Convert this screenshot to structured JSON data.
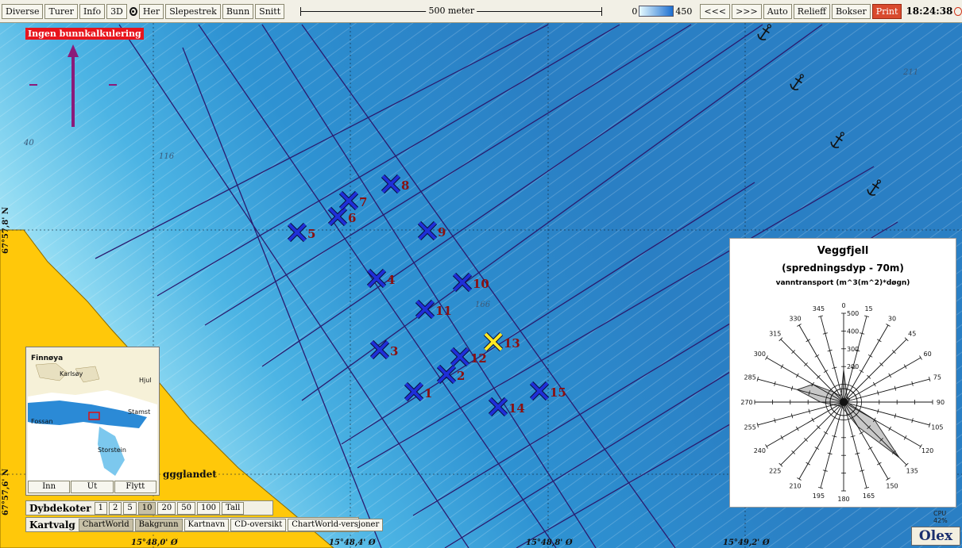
{
  "toolbar": {
    "buttons": [
      "Diverse",
      "Turer",
      "Info",
      "3D",
      "Her",
      "Slepestrek",
      "Bunn",
      "Snitt"
    ],
    "scale_label": "500 meter",
    "depth_min": "0",
    "depth_max": "450",
    "right_buttons": [
      "<<<",
      ">>>",
      "Auto",
      "Relieff",
      "Bokser"
    ],
    "print_label": "Print",
    "clock": "18:24:38"
  },
  "map": {
    "no_bottom_calc": "Ingen bunnkalkulering",
    "depth_labels": [
      "211",
      "116",
      "40",
      "166"
    ],
    "land_label": "ggglandet",
    "stations": [
      {
        "label": "1",
        "color": "blue"
      },
      {
        "label": "2",
        "color": "blue"
      },
      {
        "label": "3",
        "color": "blue"
      },
      {
        "label": "4",
        "color": "blue"
      },
      {
        "label": "5",
        "color": "blue"
      },
      {
        "label": "6",
        "color": "blue"
      },
      {
        "label": "7",
        "color": "blue"
      },
      {
        "label": "8",
        "color": "blue"
      },
      {
        "label": "9",
        "color": "blue"
      },
      {
        "label": "10",
        "color": "blue"
      },
      {
        "label": "11",
        "color": "blue"
      },
      {
        "label": "12",
        "color": "blue"
      },
      {
        "label": "13",
        "color": "yellow"
      },
      {
        "label": "14",
        "color": "blue"
      },
      {
        "label": "15",
        "color": "blue"
      }
    ],
    "lat_labels": [
      "67°57,8' N",
      "67°57,6' N"
    ],
    "lon_labels": [
      "15°48,0' Ø",
      "15°48,4' Ø",
      "15°48,8' Ø",
      "15°49,2' Ø"
    ],
    "colors": {
      "deep": "#2f86c8",
      "shallow": "#bfeefb",
      "land": "#ffc80a",
      "track": "#2b1a6e",
      "station": "#1f2fd8",
      "station_label": "#8a1010",
      "arrow": "#8b1a7a"
    }
  },
  "inset": {
    "places": [
      "Finnøya",
      "Karlsøy",
      "Hjul",
      "Stamst",
      "Fossan",
      "Storstein"
    ],
    "buttons": [
      "Inn",
      "Ut",
      "Flytt"
    ]
  },
  "depth_contours": {
    "title": "Dybdekoter",
    "options": [
      "1",
      "2",
      "5",
      "10",
      "20",
      "50",
      "100",
      "Tall"
    ],
    "selected": "10"
  },
  "chart_select": {
    "title": "Kartvalg",
    "options": [
      "ChartWorld",
      "Bakgrunn",
      "Kartnavn",
      "CD-oversikt",
      "ChartWorld-versjoner"
    ]
  },
  "rose": {
    "title": "Veggfjell",
    "subtitle": "(spredningsdyp - 70m)",
    "unit": "vanntransport (m^3(m^2)*døgn)",
    "directions": [
      "0",
      "15",
      "30",
      "45",
      "60",
      "75",
      "90",
      "105",
      "120",
      "135",
      "150",
      "165",
      "180",
      "195",
      "210",
      "225",
      "240",
      "255",
      "270",
      "285",
      "300",
      "315",
      "330",
      "345"
    ],
    "radial_ticks": [
      "500",
      "400",
      "300",
      "200"
    ],
    "petal_values": [
      180,
      60,
      40,
      30,
      40,
      30,
      20,
      30,
      200,
      440,
      160,
      60,
      40,
      30,
      30,
      30,
      40,
      60,
      130,
      270,
      200,
      80,
      40,
      50
    ]
  },
  "cpu": "CPU 42%",
  "logo": "Olex"
}
